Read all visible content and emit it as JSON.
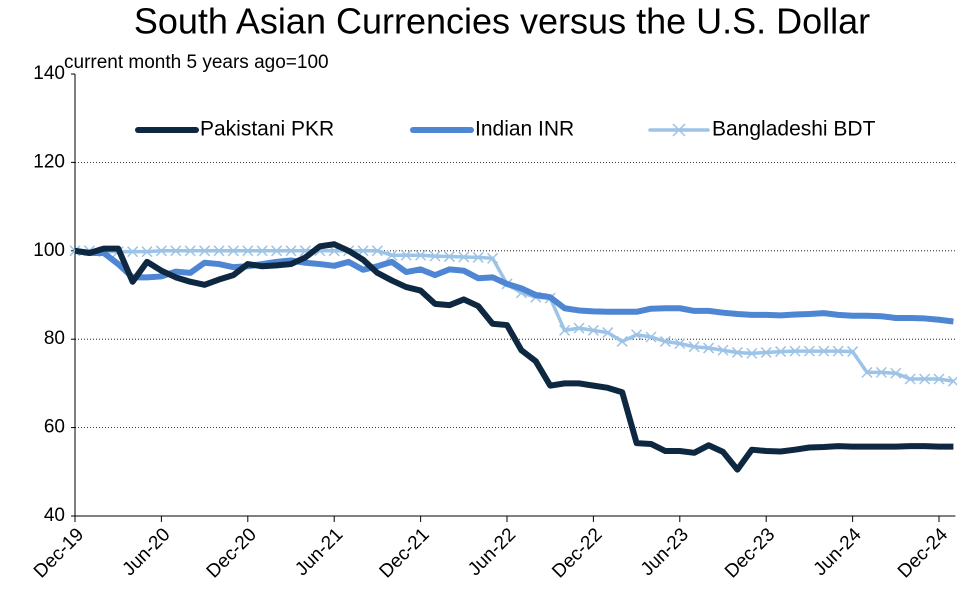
{
  "chart_data": {
    "type": "line",
    "title": "South Asian Currencies versus the U.S. Dollar",
    "subtitle": "current month 5 years ago=100",
    "categories": [
      "Dec-19",
      null,
      null,
      null,
      null,
      null,
      "Jun-20",
      null,
      null,
      null,
      null,
      null,
      "Dec-20",
      null,
      null,
      null,
      null,
      null,
      "Jun-21",
      null,
      null,
      null,
      null,
      null,
      "Dec-21",
      null,
      null,
      null,
      null,
      null,
      "Jun-22",
      null,
      null,
      null,
      null,
      null,
      "Dec-22",
      null,
      null,
      null,
      null,
      null,
      "Jun-23",
      null,
      null,
      null,
      null,
      null,
      "Dec-23",
      null,
      null,
      null,
      null,
      null,
      "Jun-24",
      null,
      null,
      null,
      null,
      null,
      "Dec-24",
      null
    ],
    "series": [
      {
        "name": "Pakistani PKR",
        "color": "#0e2841",
        "marker": "none",
        "values": [
          100,
          99.5,
          100.5,
          100.5,
          93,
          97.5,
          95.5,
          94,
          93,
          92.3,
          93.5,
          94.5,
          97,
          96.5,
          96.7,
          97,
          98.5,
          101,
          101.5,
          100,
          98,
          95,
          93.3,
          91.8,
          91,
          88,
          87.7,
          89,
          87.5,
          83.5,
          83.2,
          77.5,
          75,
          69.5,
          70,
          70,
          69.5,
          69,
          68,
          56.5,
          56.3,
          54.7,
          54.7,
          54.3,
          56,
          54.5,
          50.5,
          55,
          54.7,
          54.6,
          55,
          55.5,
          55.6,
          55.8,
          55.7,
          55.7,
          55.7,
          55.7,
          55.8,
          55.8,
          55.7,
          55.7
        ]
      },
      {
        "name": "Indian INR",
        "color": "#4e86d4",
        "marker": "none",
        "values": [
          100,
          99.5,
          99.5,
          97,
          94,
          94,
          94.2,
          95.3,
          95,
          97.3,
          97,
          96.3,
          96.5,
          97,
          97.5,
          97.8,
          97.3,
          97,
          96.6,
          97.5,
          95.7,
          96.5,
          97.5,
          95.2,
          95.8,
          94.5,
          95.8,
          95.5,
          93.8,
          94,
          92.5,
          91.5,
          90,
          89.5,
          87,
          86.5,
          86.3,
          86.2,
          86.2,
          86.2,
          86.9,
          87,
          87,
          86.4,
          86.4,
          86,
          85.7,
          85.5,
          85.5,
          85.4,
          85.6,
          85.7,
          85.9,
          85.5,
          85.3,
          85.3,
          85.2,
          84.8,
          84.8,
          84.7,
          84.4,
          84
        ]
      },
      {
        "name": "Bangladeshi BDT",
        "color": "#9dc3e6",
        "marker": "x",
        "values": [
          100,
          100,
          99.8,
          99.8,
          99.8,
          99.8,
          100,
          100,
          100,
          100,
          100,
          100,
          100,
          100,
          100,
          100,
          100,
          100,
          100,
          100,
          100,
          100,
          99,
          99,
          99,
          98.8,
          98.7,
          98.6,
          98.5,
          98.3,
          92.5,
          90.5,
          89.5,
          89.3,
          82,
          82.5,
          82,
          81.5,
          79.5,
          81,
          80.5,
          79.5,
          79,
          78.3,
          78,
          77.5,
          77,
          76.8,
          77,
          77.2,
          77.3,
          77.3,
          77.3,
          77.3,
          77.2,
          72.5,
          72.5,
          72.3,
          71,
          71,
          71,
          70.5
        ]
      }
    ],
    "ylim": [
      40,
      140
    ],
    "yticks": [
      40,
      60,
      80,
      100,
      120,
      140
    ],
    "grid": true,
    "legend": "top"
  }
}
